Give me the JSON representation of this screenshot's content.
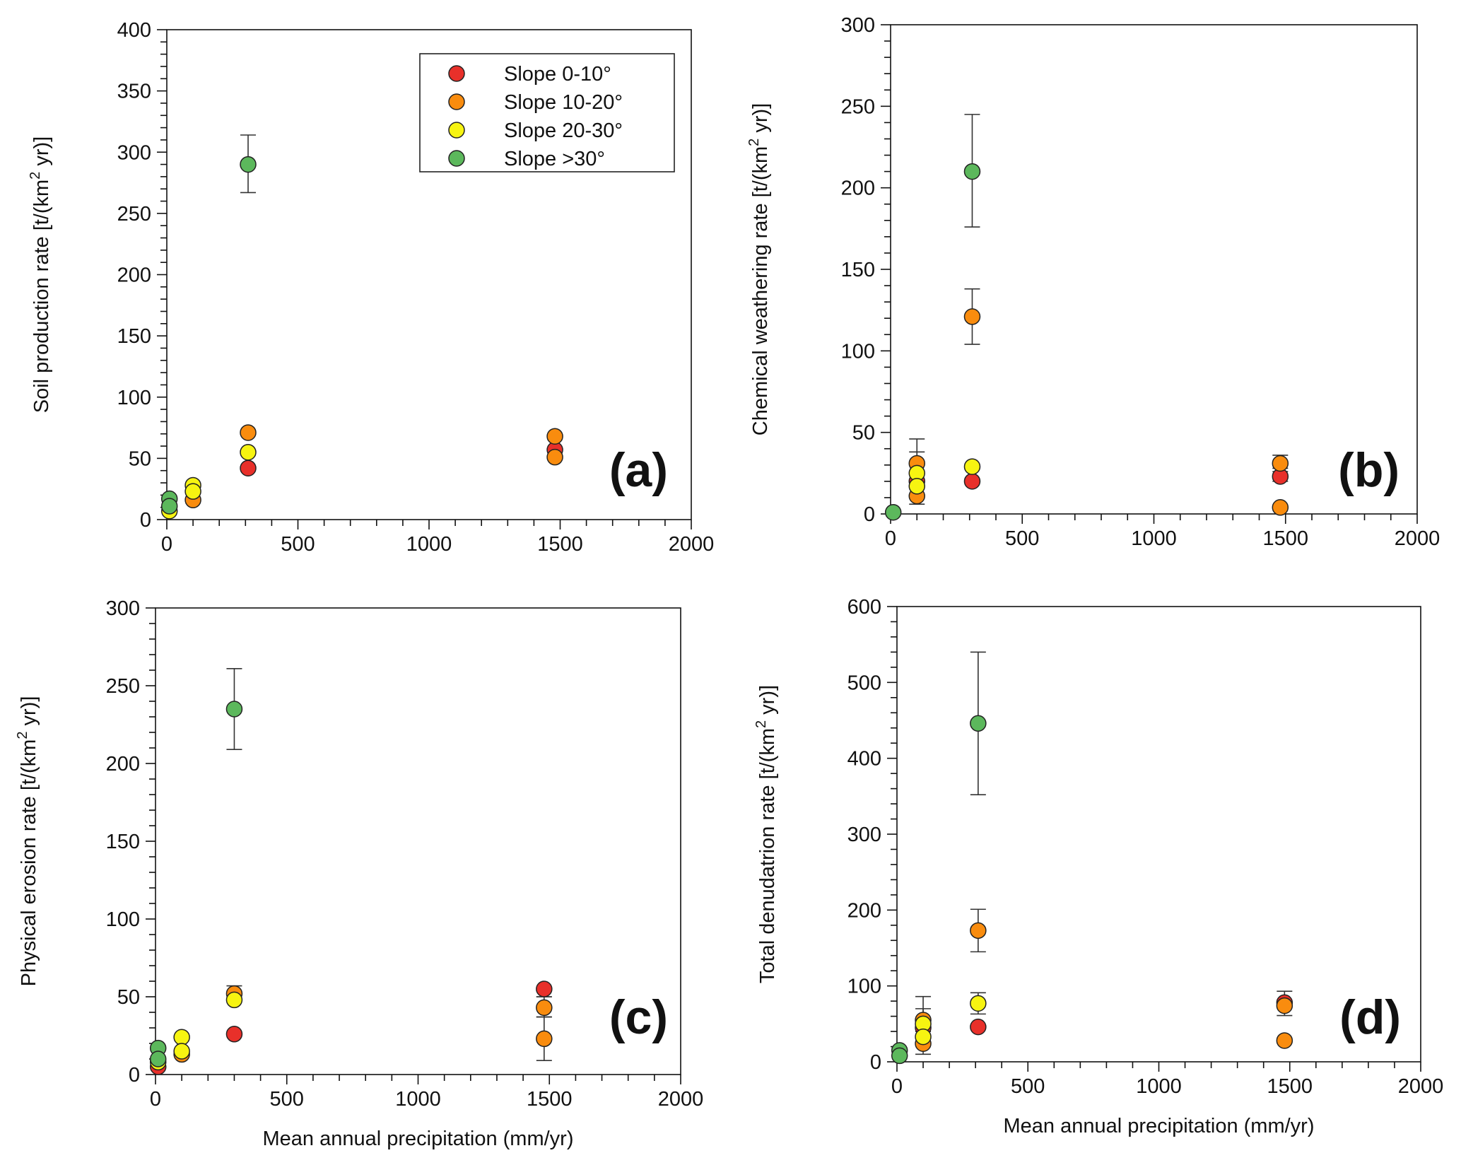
{
  "legend": {
    "placement": "top-right of panel (a)",
    "entries": [
      {
        "series": "s0",
        "label": "Slope 0-10°"
      },
      {
        "series": "s1",
        "label": "Slope 10-20°"
      },
      {
        "series": "s2",
        "label": "Slope 20-30°"
      },
      {
        "series": "s3",
        "label": "Slope >30°"
      }
    ]
  },
  "colors": {
    "s0": "#e8302a",
    "s1": "#f98c0e",
    "s2": "#f7f411",
    "s3": "#5cb85c",
    "axis": "#111111"
  },
  "chart_data": [
    {
      "type": "scatter",
      "panel": "(a)",
      "title": "",
      "xlabel": "",
      "ylabel": "Soil production rate [t/(km² yr)]",
      "xlim": [
        0,
        2000
      ],
      "ylim": [
        0,
        400
      ],
      "xticks": [
        0,
        500,
        1000,
        1500,
        2000
      ],
      "yticks": [
        0,
        50,
        100,
        150,
        200,
        250,
        300,
        350,
        400
      ],
      "grid": false,
      "series": [
        {
          "name": "Slope 0-10°",
          "key": "s0",
          "points": [
            {
              "x": 310,
              "y": 42
            },
            {
              "x": 1480,
              "y": 57
            }
          ]
        },
        {
          "name": "Slope 10-20°",
          "key": "s1",
          "points": [
            {
              "x": 100,
              "y": 16
            },
            {
              "x": 310,
              "y": 71
            },
            {
              "x": 1480,
              "y": 68
            },
            {
              "x": 1480,
              "y": 51
            }
          ]
        },
        {
          "name": "Slope 20-30°",
          "key": "s2",
          "points": [
            {
              "x": 10,
              "y": 7
            },
            {
              "x": 100,
              "y": 28
            },
            {
              "x": 100,
              "y": 23
            },
            {
              "x": 310,
              "y": 55
            }
          ]
        },
        {
          "name": "Slope >30°",
          "key": "s3",
          "points": [
            {
              "x": 10,
              "y": 17
            },
            {
              "x": 10,
              "y": 11
            },
            {
              "x": 310,
              "y": 290,
              "err": [
                267,
                314
              ]
            }
          ]
        }
      ]
    },
    {
      "type": "scatter",
      "panel": "(b)",
      "title": "",
      "xlabel": "",
      "ylabel": "Chemical weathering rate [t/(km² yr)]",
      "xlim": [
        0,
        2000
      ],
      "ylim": [
        0,
        300
      ],
      "xticks": [
        0,
        500,
        1000,
        1500,
        2000
      ],
      "yticks": [
        0,
        50,
        100,
        150,
        200,
        250,
        300
      ],
      "grid": false,
      "series": [
        {
          "name": "Slope 0-10°",
          "key": "s0",
          "points": [
            {
              "x": 100,
              "y": 20
            },
            {
              "x": 310,
              "y": 20
            },
            {
              "x": 1480,
              "y": 23,
              "err": [
                20,
                26
              ]
            }
          ]
        },
        {
          "name": "Slope 10-20°",
          "key": "s1",
          "points": [
            {
              "x": 100,
              "y": 31,
              "err": [
                25,
                46
              ]
            },
            {
              "x": 100,
              "y": 11,
              "err": [
                6,
                16
              ]
            },
            {
              "x": 310,
              "y": 121,
              "err": [
                104,
                138
              ]
            },
            {
              "x": 1480,
              "y": 31,
              "err": [
                28,
                36
              ]
            },
            {
              "x": 1480,
              "y": 4
            }
          ]
        },
        {
          "name": "Slope 20-30°",
          "key": "s2",
          "points": [
            {
              "x": 100,
              "y": 25,
              "err": [
                20,
                38
              ]
            },
            {
              "x": 100,
              "y": 17
            },
            {
              "x": 310,
              "y": 29
            }
          ]
        },
        {
          "name": "Slope >30°",
          "key": "s3",
          "points": [
            {
              "x": 10,
              "y": 1
            },
            {
              "x": 310,
              "y": 210,
              "err": [
                176,
                245
              ]
            }
          ]
        }
      ]
    },
    {
      "type": "scatter",
      "panel": "(c)",
      "title": "",
      "xlabel": "Mean annual precipitation (mm/yr)",
      "ylabel": "Physical erosion rate [t/(km² yr)]",
      "xlim": [
        0,
        2000
      ],
      "ylim": [
        0,
        300
      ],
      "xticks": [
        0,
        500,
        1000,
        1500,
        2000
      ],
      "yticks": [
        0,
        50,
        100,
        150,
        200,
        250,
        300
      ],
      "grid": false,
      "series": [
        {
          "name": "Slope 0-10°",
          "key": "s0",
          "points": [
            {
              "x": 10,
              "y": 5
            },
            {
              "x": 300,
              "y": 26
            },
            {
              "x": 1480,
              "y": 55,
              "err": [
                50,
                55
              ]
            }
          ]
        },
        {
          "name": "Slope 10-20°",
          "key": "s1",
          "points": [
            {
              "x": 100,
              "y": 13
            },
            {
              "x": 300,
              "y": 52,
              "err": [
                48,
                57
              ]
            },
            {
              "x": 1480,
              "y": 43,
              "err": [
                37,
                50
              ]
            },
            {
              "x": 1480,
              "y": 23,
              "err": [
                9,
                37
              ]
            }
          ]
        },
        {
          "name": "Slope 20-30°",
          "key": "s2",
          "points": [
            {
              "x": 10,
              "y": 8
            },
            {
              "x": 100,
              "y": 24
            },
            {
              "x": 100,
              "y": 15
            },
            {
              "x": 300,
              "y": 48
            }
          ]
        },
        {
          "name": "Slope >30°",
          "key": "s3",
          "points": [
            {
              "x": 10,
              "y": 17
            },
            {
              "x": 10,
              "y": 10
            },
            {
              "x": 300,
              "y": 235,
              "err": [
                209,
                261
              ]
            }
          ]
        }
      ]
    },
    {
      "type": "scatter",
      "panel": "(d)",
      "title": "",
      "xlabel": "Mean annual precipitation (mm/yr)",
      "ylabel": "Total denudatrion rate [t/(km² yr)]",
      "xlim": [
        0,
        2000
      ],
      "ylim": [
        0,
        600
      ],
      "xticks": [
        0,
        500,
        1000,
        1500,
        2000
      ],
      "yticks": [
        0,
        100,
        200,
        300,
        400,
        500,
        600
      ],
      "grid": false,
      "series": [
        {
          "name": "Slope 0-10°",
          "key": "s0",
          "points": [
            {
              "x": 100,
              "y": 45
            },
            {
              "x": 310,
              "y": 46
            },
            {
              "x": 1480,
              "y": 78
            }
          ]
        },
        {
          "name": "Slope 10-20°",
          "key": "s1",
          "points": [
            {
              "x": 100,
              "y": 55,
              "err": [
                40,
                86
              ]
            },
            {
              "x": 100,
              "y": 24,
              "err": [
                10,
                40
              ]
            },
            {
              "x": 310,
              "y": 173,
              "err": [
                145,
                201
              ]
            },
            {
              "x": 1480,
              "y": 74,
              "err": [
                61,
                93
              ]
            },
            {
              "x": 1480,
              "y": 28
            }
          ]
        },
        {
          "name": "Slope 20-30°",
          "key": "s2",
          "points": [
            {
              "x": 100,
              "y": 50,
              "err": [
                35,
                70
              ]
            },
            {
              "x": 100,
              "y": 33
            },
            {
              "x": 310,
              "y": 77,
              "err": [
                63,
                91
              ]
            }
          ]
        },
        {
          "name": "Slope >30°",
          "key": "s3",
          "points": [
            {
              "x": 10,
              "y": 15
            },
            {
              "x": 10,
              "y": 8
            },
            {
              "x": 310,
              "y": 446,
              "err": [
                352,
                540
              ]
            }
          ]
        }
      ]
    }
  ]
}
